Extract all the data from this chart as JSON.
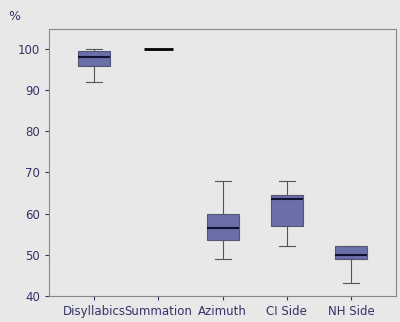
{
  "categories": [
    "Disyllabics",
    "Summation",
    "Azimuth",
    "CI Side",
    "NH Side"
  ],
  "box_data": [
    {
      "whislo": 92.0,
      "q1": 96.0,
      "med": 98.0,
      "q3": 99.5,
      "whishi": 100.0
    },
    {
      "whislo": 100.0,
      "q1": 100.0,
      "med": 100.0,
      "q3": 100.0,
      "whishi": 100.0
    },
    {
      "whislo": 49.0,
      "q1": 53.5,
      "med": 56.5,
      "q3": 60.0,
      "whishi": 68.0
    },
    {
      "whislo": 52.0,
      "q1": 57.0,
      "med": 63.5,
      "q3": 64.5,
      "whishi": 68.0
    },
    {
      "whislo": 43.0,
      "q1": 49.0,
      "med": 50.0,
      "q3": 52.0,
      "whishi": 52.0
    }
  ],
  "percent_label": "%",
  "ylim": [
    40,
    105
  ],
  "yticks": [
    40,
    50,
    60,
    70,
    80,
    90,
    100
  ],
  "box_color": "#6b6fa8",
  "box_edge_color": "#555577",
  "median_color": "#111133",
  "whisker_color": "#555555",
  "cap_color": "#555555",
  "background_color": "#e8e8e8",
  "spine_color": "#888888",
  "tick_label_color": "#333366",
  "box_width": 0.5,
  "figsize": [
    4.0,
    3.22
  ],
  "dpi": 100
}
